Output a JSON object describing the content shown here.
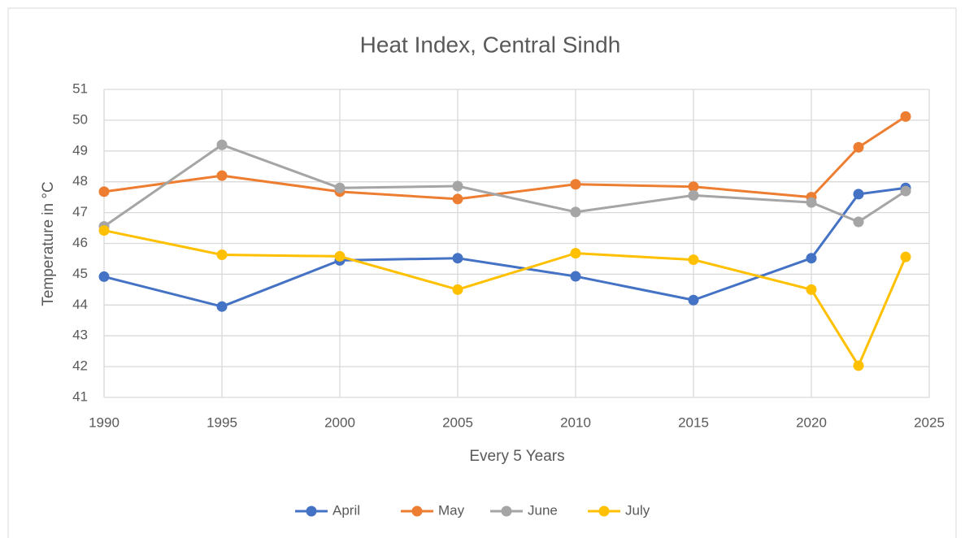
{
  "chart_data": {
    "type": "line",
    "title": "Heat Index, Central Sindh",
    "x_label": "Every 5 Years",
    "y_label": "Temperature in °C",
    "x": [
      1990,
      1995,
      2000,
      2005,
      2010,
      2015,
      2020,
      2022,
      2024
    ],
    "series": [
      {
        "name": "April",
        "color": "#4472c4",
        "values": [
          44.92,
          43.95,
          45.45,
          45.52,
          44.93,
          44.16,
          45.52,
          47.6,
          47.8
        ]
      },
      {
        "name": "May",
        "color": "#ed7d31",
        "values": [
          47.68,
          48.2,
          47.68,
          47.44,
          47.92,
          47.84,
          47.5,
          49.12,
          50.12
        ]
      },
      {
        "name": "June",
        "color": "#a5a5a5",
        "values": [
          46.55,
          49.2,
          47.8,
          47.86,
          47.02,
          47.56,
          47.33,
          46.7,
          47.7
        ]
      },
      {
        "name": "July",
        "color": "#ffc000",
        "values": [
          46.42,
          45.63,
          45.58,
          44.5,
          45.68,
          45.47,
          44.5,
          42.03,
          45.56
        ]
      }
    ],
    "xlim": [
      1990,
      2025
    ],
    "xticks": [
      1990,
      1995,
      2000,
      2005,
      2010,
      2015,
      2020,
      2025
    ],
    "ylim": [
      41,
      51
    ],
    "yticks": [
      41,
      42,
      43,
      44,
      45,
      46,
      47,
      48,
      49,
      50,
      51
    ],
    "grid": true,
    "legend": "bottom"
  }
}
